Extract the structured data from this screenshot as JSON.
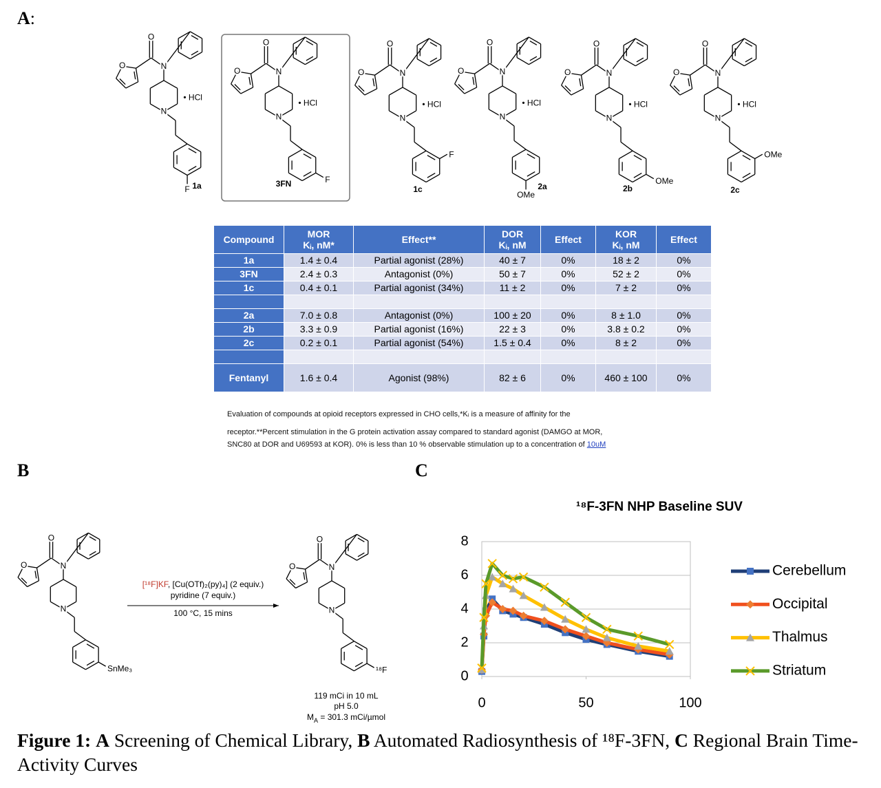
{
  "panel_labels": {
    "a": "A",
    "a_colon": ":",
    "b": "B",
    "c": "C"
  },
  "scaffold": {
    "oxygen": "O",
    "nitrogen": "N"
  },
  "compounds": [
    {
      "label": "1a",
      "salt": "• HCl",
      "substituent": "F",
      "position": "para"
    },
    {
      "label": "3FN",
      "salt": "• HCl",
      "substituent": "F",
      "position": "meta"
    },
    {
      "label": "1c",
      "salt": "• HCl",
      "substituent": "F",
      "position": "ortho"
    },
    {
      "label": "2a",
      "salt": "• HCl",
      "substituent": "OMe",
      "position": "para"
    },
    {
      "label": "2b",
      "salt": "• HCl",
      "substituent": "OMe",
      "position": "meta"
    },
    {
      "label": "2c",
      "salt": "• HCl",
      "substituent": "OMe",
      "position": "ortho"
    }
  ],
  "table": {
    "header": [
      [
        "Compound"
      ],
      [
        "MOR",
        "Kᵢ, nM*"
      ],
      [
        "Effect**"
      ],
      [
        "DOR",
        "Kᵢ, nM"
      ],
      [
        "Effect"
      ],
      [
        "KOR",
        "Kᵢ, nM"
      ],
      [
        "Effect"
      ]
    ],
    "rows": [
      [
        "1a",
        "1.4 ± 0.4",
        "Partial agonist (28%)",
        "40 ± 7",
        "0%",
        "18 ± 2",
        "0%"
      ],
      [
        "3FN",
        "2.4 ± 0.3",
        "Antagonist (0%)",
        "50 ± 7",
        "0%",
        "52 ± 2",
        "0%"
      ],
      [
        "1c",
        "0.4 ± 0.1",
        "Partial agonist (34%)",
        "11 ± 2",
        "0%",
        "7 ± 2",
        "0%"
      ],
      null,
      [
        "2a",
        "7.0 ± 0.8",
        "Antagonist (0%)",
        "100 ± 20",
        "0%",
        "8 ± 1.0",
        "0%"
      ],
      [
        "2b",
        "3.3 ± 0.9",
        "Partial agonist (16%)",
        "22 ± 3",
        "0%",
        "3.8 ± 0.2",
        "0%"
      ],
      [
        "2c",
        "0.2 ± 0.1",
        "Partial agonist (54%)",
        "1.5 ± 0.4",
        "0%",
        "8 ± 2",
        "0%"
      ],
      null,
      [
        "Fentanyl",
        "1.6 ± 0.4",
        "Agonist (98%)",
        "82 ± 6",
        "0%",
        "460 ± 100",
        "0%"
      ]
    ]
  },
  "table_caption": {
    "lines": [
      "Evaluation of compounds at opioid receptors expressed in CHO cells,*Kᵢ is a measure of affinity for the",
      "receptor.**Percent stimulation in the G protein activation assay compared to standard agonist (DAMGO at MOR,",
      "SNC80 at DOR and U69593 at KOR). 0% is less than 10 % observable stimulation up to a concentration of"
    ],
    "link": "10uM"
  },
  "synthesis": {
    "reactant_substituent": "SnMe₃",
    "conditions": [
      [
        {
          "text": "[¹⁸F]KF",
          "color": "#c0392b"
        },
        {
          "text": ", [Cu(OTf)₂(py)₄] (2 equiv.)"
        }
      ],
      [
        {
          "text": "pyridine (7 equiv.)"
        }
      ],
      [
        {
          "text": "100 °C, 15 mins"
        }
      ]
    ],
    "product_substituent": "¹⁸F",
    "product_substituent_color": "#c0392b",
    "product_notes": [
      [
        {
          "text": "119 mCi in 10 mL"
        }
      ],
      [
        {
          "text": "pH 5.0"
        }
      ],
      [
        {
          "text": "M"
        },
        {
          "text": "A",
          "sub": true
        },
        {
          "text": " = 301.3 mCi/µmol"
        }
      ]
    ]
  },
  "chart_data": {
    "type": "line",
    "title": "¹⁸F-3FN NHP Baseline SUV",
    "x": [
      0,
      1,
      2,
      5,
      10,
      15,
      20,
      30,
      40,
      50,
      60,
      75,
      90
    ],
    "series": [
      {
        "name": "Cerebellum",
        "color": "#1f3f77",
        "marker": "square",
        "marker_color": "#4472c4",
        "values": [
          0.3,
          2.4,
          3.9,
          4.6,
          3.9,
          3.7,
          3.5,
          3.1,
          2.6,
          2.2,
          1.9,
          1.5,
          1.2
        ]
      },
      {
        "name": "Occipital",
        "color": "#f0501e",
        "marker": "diamond",
        "marker_color": "#ed7d31",
        "values": [
          0.4,
          2.5,
          3.6,
          4.4,
          4.0,
          3.9,
          3.6,
          3.3,
          2.8,
          2.4,
          2.0,
          1.6,
          1.3
        ]
      },
      {
        "name": "Thalmus",
        "color": "#ffc000",
        "marker": "triangle",
        "marker_color": "#a5a5a5",
        "values": [
          0.4,
          3.0,
          4.8,
          5.9,
          5.5,
          5.2,
          4.8,
          4.1,
          3.4,
          2.8,
          2.3,
          1.8,
          1.5
        ]
      },
      {
        "name": "Striatum",
        "color": "#5a9a2a",
        "marker": "x",
        "marker_color": "#ffc000",
        "values": [
          0.5,
          3.5,
          5.5,
          6.7,
          6.0,
          5.8,
          5.9,
          5.3,
          4.4,
          3.5,
          2.8,
          2.4,
          1.9
        ]
      }
    ],
    "xlim": [
      0,
      100
    ],
    "xticks": [
      0,
      50,
      100
    ],
    "ylim": [
      0,
      8
    ],
    "yticks": [
      0,
      2,
      4,
      6,
      8
    ],
    "grid": true,
    "legend": "right"
  },
  "figure_caption": [
    {
      "text": "Figure 1:",
      "bold": true
    },
    {
      "text": " "
    },
    {
      "text": "A",
      "bold": true
    },
    {
      "text": " Screening of Chemical Library, "
    },
    {
      "text": "B",
      "bold": true
    },
    {
      "text": " Automated Radiosynthesis of ¹⁸F-3FN, "
    },
    {
      "text": "C",
      "bold": true
    },
    {
      "text": " Regional Brain Time-Activity Curves"
    }
  ]
}
